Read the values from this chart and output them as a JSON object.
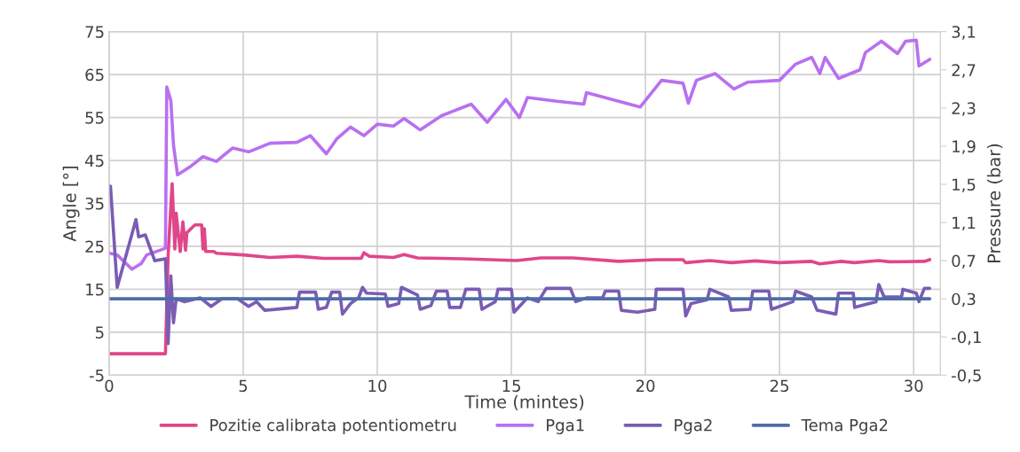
{
  "chart_data": {
    "type": "line",
    "xlabel": "Time (mintes)",
    "ylabel": "Angle [°]",
    "y2label": "Pressure (bar)",
    "xlim": [
      0,
      31
    ],
    "xticks": [
      0,
      5,
      10,
      15,
      20,
      25,
      30
    ],
    "ylim": [
      -5,
      75
    ],
    "yticks": [
      -5,
      5,
      15,
      25,
      35,
      45,
      55,
      65,
      75
    ],
    "y2lim": [
      -0.5,
      3.1
    ],
    "y2ticks": [
      {
        "value": -0.5,
        "label": "-0,5"
      },
      {
        "value": -0.1,
        "label": "-0,1"
      },
      {
        "value": 0.3,
        "label": "0,3"
      },
      {
        "value": 0.7,
        "label": "0,7"
      },
      {
        "value": 1.1,
        "label": "1,1"
      },
      {
        "value": 1.5,
        "label": "1,5"
      },
      {
        "value": 1.9,
        "label": "1,9"
      },
      {
        "value": 2.3,
        "label": "2,3"
      },
      {
        "value": 2.7,
        "label": "2,7"
      },
      {
        "value": 3.1,
        "label": "3,1"
      }
    ],
    "grid": true,
    "legend": "bottom",
    "marker": "none",
    "line_style": "solid",
    "series": [
      {
        "name": "Pozitie calibrata potentiometru",
        "color": "#e0468a",
        "x": [
          0,
          2.1,
          2.2,
          2.35,
          2.45,
          2.5,
          2.65,
          2.75,
          2.85,
          2.9,
          3.2,
          3.45,
          3.5,
          3.55,
          3.6,
          3.9,
          4,
          5,
          6,
          7,
          8,
          9.4,
          9.5,
          9.7,
          10.6,
          11,
          11.5,
          13.2,
          15.2,
          16.1,
          17.3,
          19,
          20.4,
          21.4,
          21.5,
          22.4,
          23.2,
          24.1,
          25,
          26.2,
          26.5,
          27.3,
          27.8,
          28.7,
          29.1,
          30.4,
          30.6
        ],
        "values": [
          0,
          0,
          23,
          39.6,
          24.4,
          32.7,
          23.8,
          30.7,
          24.1,
          28.2,
          30,
          30,
          24.4,
          29.1,
          23.8,
          23.8,
          23.4,
          23,
          22.4,
          22.7,
          22.2,
          22.2,
          23.5,
          22.7,
          22.4,
          23.1,
          22.3,
          22.1,
          21.7,
          22.3,
          22.3,
          21.5,
          21.9,
          21.9,
          21.2,
          21.7,
          21.2,
          21.6,
          21.2,
          21.5,
          20.9,
          21.5,
          21.2,
          21.7,
          21.4,
          21.5,
          21.9
        ]
      },
      {
        "name": "Pga1",
        "color": "#b870f0",
        "axis": "y2",
        "x": [
          0,
          0.3,
          0.85,
          1.2,
          1.4,
          2.1,
          2.15,
          2.3,
          2.4,
          2.55,
          3,
          3.5,
          4,
          4.6,
          5.2,
          6,
          7,
          7.5,
          8.1,
          8.5,
          9,
          9.5,
          10,
          10.6,
          11,
          11.6,
          12.4,
          13.5,
          14.1,
          14.8,
          15.3,
          15.6,
          16.7,
          17.7,
          17.8,
          19,
          19.8,
          20.6,
          21.4,
          21.6,
          21.9,
          22.6,
          23.3,
          23.8,
          25,
          25.6,
          26.2,
          26.5,
          26.7,
          27.2,
          28,
          28.2,
          28.8,
          29.4,
          29.7,
          30.1,
          30.2,
          30.6
        ],
        "values": [
          0.78,
          0.76,
          0.61,
          0.67,
          0.76,
          0.83,
          2.52,
          2.38,
          1.91,
          1.6,
          1.68,
          1.79,
          1.74,
          1.88,
          1.84,
          1.93,
          1.94,
          2.01,
          1.82,
          1.98,
          2.1,
          2.01,
          2.13,
          2.11,
          2.19,
          2.07,
          2.22,
          2.34,
          2.15,
          2.39,
          2.2,
          2.41,
          2.37,
          2.34,
          2.46,
          2.37,
          2.31,
          2.59,
          2.56,
          2.35,
          2.59,
          2.66,
          2.5,
          2.57,
          2.59,
          2.76,
          2.83,
          2.66,
          2.83,
          2.61,
          2.7,
          2.88,
          3.0,
          2.87,
          3.0,
          3.01,
          2.74,
          2.81
        ]
      },
      {
        "name": "Pga2",
        "color": "#7a5cb4",
        "axis": "y2",
        "x": [
          0,
          0.05,
          0.3,
          1.0,
          1.1,
          1.35,
          1.7,
          2.1,
          2.2,
          2.3,
          2.4,
          2.5,
          2.8,
          3.4,
          3.8,
          4.2,
          4.8,
          5.2,
          5.5,
          5.8,
          7,
          7.1,
          7.7,
          7.8,
          8.1,
          8.3,
          8.6,
          8.7,
          9,
          9.3,
          9.45,
          9.6,
          10.3,
          10.4,
          10.8,
          10.9,
          11.5,
          11.6,
          12,
          12.2,
          12.6,
          12.7,
          13.1,
          13.3,
          13.8,
          13.9,
          14.4,
          14.5,
          15,
          15.1,
          15.6,
          16,
          16.3,
          17.2,
          17.4,
          17.8,
          18.4,
          18.5,
          19,
          19.1,
          19.7,
          20.35,
          20.4,
          21.4,
          21.5,
          21.7,
          22.3,
          22.4,
          23.1,
          23.2,
          23.9,
          24,
          24.6,
          24.7,
          25.5,
          25.6,
          26.2,
          26.4,
          27.1,
          27.2,
          27.75,
          27.8,
          28.6,
          28.7,
          28.9,
          29.55,
          29.6,
          30.1,
          30.2,
          30.4,
          30.6
        ],
        "values": [
          1.48,
          1.48,
          0.42,
          1.13,
          0.95,
          0.97,
          0.7,
          0.72,
          -0.17,
          0.54,
          0.05,
          0.3,
          0.27,
          0.31,
          0.22,
          0.3,
          0.3,
          0.22,
          0.27,
          0.18,
          0.21,
          0.37,
          0.37,
          0.19,
          0.21,
          0.37,
          0.37,
          0.14,
          0.25,
          0.31,
          0.42,
          0.36,
          0.35,
          0.22,
          0.25,
          0.42,
          0.34,
          0.19,
          0.23,
          0.38,
          0.38,
          0.21,
          0.21,
          0.4,
          0.4,
          0.19,
          0.27,
          0.4,
          0.4,
          0.16,
          0.31,
          0.27,
          0.41,
          0.41,
          0.27,
          0.31,
          0.31,
          0.38,
          0.38,
          0.18,
          0.16,
          0.19,
          0.4,
          0.4,
          0.12,
          0.25,
          0.29,
          0.4,
          0.32,
          0.18,
          0.19,
          0.38,
          0.38,
          0.19,
          0.27,
          0.38,
          0.32,
          0.18,
          0.14,
          0.36,
          0.36,
          0.21,
          0.27,
          0.45,
          0.32,
          0.32,
          0.4,
          0.36,
          0.27,
          0.41,
          0.41
        ]
      },
      {
        "name": "Tema Pga2",
        "color": "#4e6ea8",
        "axis": "y2",
        "x": [
          0,
          30.6
        ],
        "values": [
          0.3,
          0.3
        ]
      }
    ]
  }
}
